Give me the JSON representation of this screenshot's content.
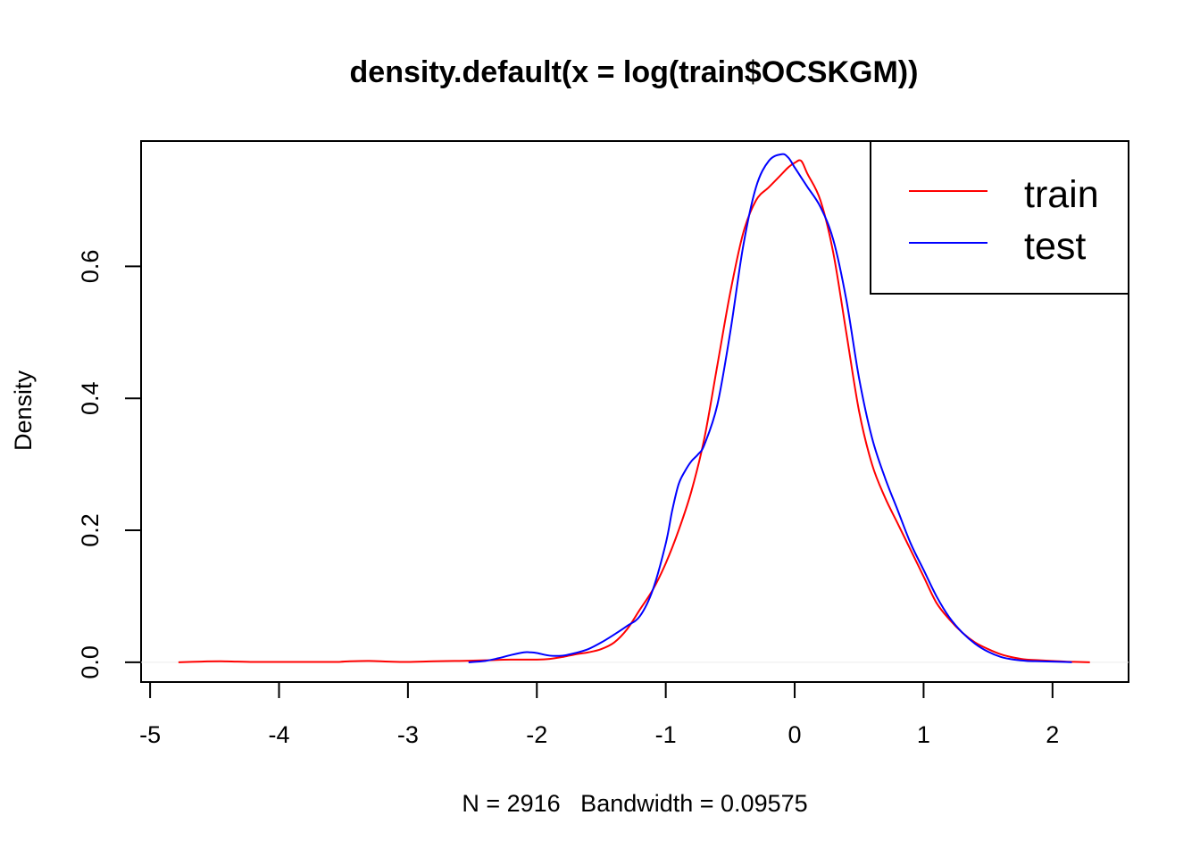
{
  "chart_data": {
    "type": "line",
    "title": "density.default(x = log(train$OCSKGM))",
    "xlabel": "N = 2916   Bandwidth = 0.09575",
    "ylabel": "Density",
    "xlim": [
      -5.07,
      2.59
    ],
    "ylim": [
      -0.03,
      0.79
    ],
    "x_ticks": [
      -5,
      -4,
      -3,
      -2,
      -1,
      0,
      1,
      2
    ],
    "x_tick_labels": [
      "-5",
      "-4",
      "-3",
      "-2",
      "-1",
      "0",
      "1",
      "2"
    ],
    "y_ticks": [
      0.0,
      0.2,
      0.4,
      0.6
    ],
    "y_tick_labels": [
      "0.0",
      "0.2",
      "0.4",
      "0.6"
    ],
    "legend_position": "top-right",
    "series": [
      {
        "name": "train",
        "color": "#ff0000",
        "x": [
          -4.78,
          -4.6,
          -4.45,
          -4.2,
          -4.0,
          -3.8,
          -3.55,
          -3.45,
          -3.3,
          -3.15,
          -3.0,
          -2.8,
          -2.6,
          -2.4,
          -2.2,
          -2.0,
          -1.9,
          -1.8,
          -1.7,
          -1.6,
          -1.5,
          -1.4,
          -1.3,
          -1.2,
          -1.1,
          -1.0,
          -0.9,
          -0.8,
          -0.7,
          -0.6,
          -0.5,
          -0.4,
          -0.3,
          -0.2,
          -0.1,
          -0.05,
          0.0,
          0.05,
          0.1,
          0.2,
          0.3,
          0.4,
          0.5,
          0.6,
          0.7,
          0.8,
          0.9,
          1.0,
          1.1,
          1.2,
          1.3,
          1.4,
          1.5,
          1.6,
          1.7,
          1.8,
          1.9,
          2.0,
          2.1,
          2.2,
          2.29
        ],
        "y": [
          0.0,
          0.001,
          0.0015,
          0.0005,
          0.0005,
          0.0005,
          0.0005,
          0.0015,
          0.002,
          0.001,
          0.0005,
          0.0015,
          0.002,
          0.003,
          0.004,
          0.004,
          0.005,
          0.008,
          0.012,
          0.015,
          0.02,
          0.03,
          0.05,
          0.08,
          0.11,
          0.15,
          0.2,
          0.26,
          0.34,
          0.45,
          0.56,
          0.65,
          0.7,
          0.72,
          0.74,
          0.75,
          0.757,
          0.76,
          0.74,
          0.7,
          0.62,
          0.5,
          0.38,
          0.3,
          0.25,
          0.21,
          0.17,
          0.13,
          0.09,
          0.065,
          0.045,
          0.03,
          0.02,
          0.012,
          0.007,
          0.004,
          0.003,
          0.002,
          0.001,
          0.0005,
          0.0
        ]
      },
      {
        "name": "test",
        "color": "#0000ff",
        "x": [
          -2.53,
          -2.4,
          -2.3,
          -2.2,
          -2.1,
          -2.05,
          -2.0,
          -1.9,
          -1.8,
          -1.7,
          -1.6,
          -1.5,
          -1.4,
          -1.3,
          -1.2,
          -1.1,
          -1.0,
          -0.95,
          -0.9,
          -0.85,
          -0.8,
          -0.75,
          -0.7,
          -0.6,
          -0.5,
          -0.4,
          -0.3,
          -0.2,
          -0.1,
          -0.05,
          0.0,
          0.05,
          0.1,
          0.2,
          0.3,
          0.4,
          0.5,
          0.6,
          0.7,
          0.8,
          0.9,
          1.0,
          1.1,
          1.2,
          1.3,
          1.4,
          1.5,
          1.6,
          1.7,
          1.8,
          1.9,
          2.0,
          2.1,
          2.15
        ],
        "y": [
          0.0,
          0.002,
          0.006,
          0.011,
          0.015,
          0.015,
          0.014,
          0.01,
          0.01,
          0.014,
          0.02,
          0.03,
          0.042,
          0.055,
          0.07,
          0.11,
          0.18,
          0.23,
          0.27,
          0.29,
          0.305,
          0.315,
          0.33,
          0.39,
          0.5,
          0.63,
          0.72,
          0.76,
          0.77,
          0.765,
          0.75,
          0.735,
          0.72,
          0.69,
          0.64,
          0.55,
          0.43,
          0.34,
          0.28,
          0.23,
          0.18,
          0.14,
          0.1,
          0.068,
          0.045,
          0.028,
          0.016,
          0.008,
          0.004,
          0.002,
          0.0015,
          0.001,
          0.0005,
          0.0
        ]
      }
    ]
  }
}
